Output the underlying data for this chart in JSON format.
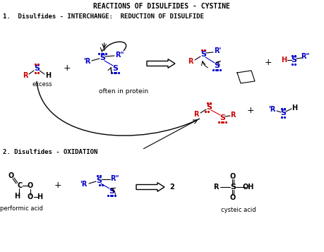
{
  "title": "REACTIONS OF DISULFIDES - CYSTINE",
  "bg_color": "#ffffff",
  "text_color": "#000000",
  "red": "#cc0000",
  "blue": "#0000cc",
  "section1_label": "1.  Disulfides - INTERCHANGE:  REDUCTION OF DISULFIDE",
  "section2_label": "2. Disulfides - OXIDATION",
  "performic_acid_label": "performic acid",
  "cysteic_acid_label": "cysteic acid",
  "excess_label": "excess",
  "often_label": "often in protein"
}
